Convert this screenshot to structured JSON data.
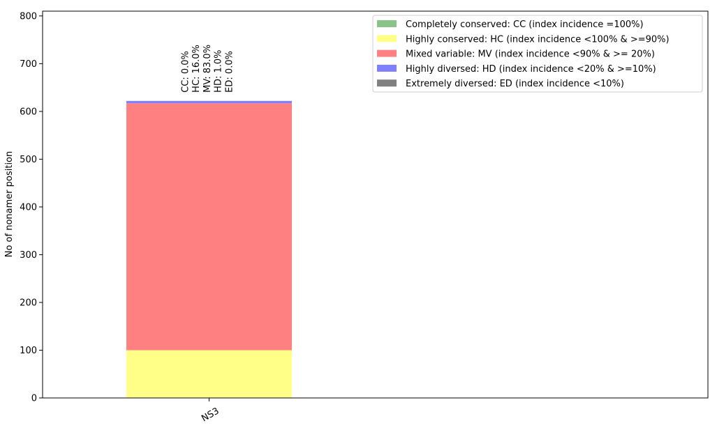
{
  "chart_data": {
    "type": "bar",
    "stacked": true,
    "categories": [
      "NS3"
    ],
    "ylabel": "No of nonamer position",
    "xlabel": "",
    "title": "",
    "ylim": [
      0,
      810
    ],
    "yticks": [
      0,
      100,
      200,
      300,
      400,
      500,
      600,
      700,
      800
    ],
    "grid": false,
    "legend_position": "top-right",
    "series": [
      {
        "name": "Completely conserved: CC (index incidence =100%)",
        "values": [
          0
        ],
        "color": "#88c488"
      },
      {
        "name": "Highly conserved: HC (index incidence <100% & >=90%)",
        "values": [
          100
        ],
        "color": "#ffff88"
      },
      {
        "name": "Mixed variable: MV (index incidence <90% & >= 20%)",
        "values": [
          517
        ],
        "color": "#ff8080"
      },
      {
        "name": "Highly diversed: HD (index incidence <20% & >=10%)",
        "values": [
          5
        ],
        "color": "#8080ff"
      },
      {
        "name": "Extremely diversed: ED (index incidence <10%)",
        "values": [
          0
        ],
        "color": "#808080"
      }
    ],
    "annotations": [
      [
        "CC: 0.0%",
        "HC: 16.0%",
        "MV: 83.0%",
        "HD: 1.0%",
        "ED: 0.0%"
      ]
    ]
  }
}
